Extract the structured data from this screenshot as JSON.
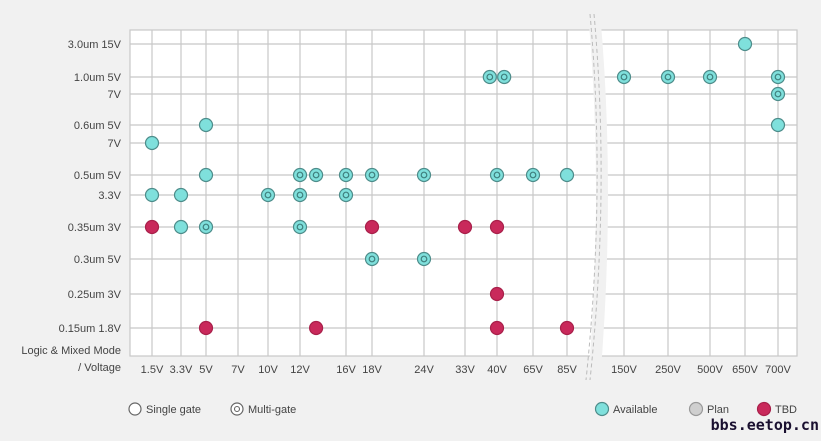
{
  "chart_data": {
    "type": "scatter",
    "title": "",
    "corner_label": [
      "Logic & Mixed Mode",
      "/ Voltage"
    ],
    "x_categories": [
      "1.5V",
      "3.3V",
      "5V",
      "7V",
      "10V",
      "12V",
      "16V",
      "18V",
      "24V",
      "33V",
      "40V",
      "65V",
      "85V",
      "150V",
      "250V",
      "500V",
      "650V",
      "700V"
    ],
    "axis_break_after": "85V",
    "rows": [
      {
        "id": "r30_15",
        "label": "3.0um 15V"
      },
      {
        "id": "r10_5",
        "label": "1.0um  5V"
      },
      {
        "id": "r10_7",
        "label": "7V"
      },
      {
        "id": "r06_5",
        "label": "0.6um  5V"
      },
      {
        "id": "r06_7",
        "label": "7V"
      },
      {
        "id": "r05_5",
        "label": "0.5um  5V"
      },
      {
        "id": "r05_33",
        "label": "3.3V"
      },
      {
        "id": "r035_3",
        "label": "0.35um 3V"
      },
      {
        "id": "r03_5",
        "label": "0.3um 5V"
      },
      {
        "id": "r025_3",
        "label": "0.25um 3V"
      },
      {
        "id": "r015_18",
        "label": "0.15um  1.8V"
      }
    ],
    "points": [
      {
        "row": "r30_15",
        "x": "650V",
        "status": "available",
        "gate": "single"
      },
      {
        "row": "r10_5",
        "x": "40V",
        "shift": -0.2,
        "status": "available",
        "gate": "multi"
      },
      {
        "row": "r10_5",
        "x": "40V",
        "shift": 0.2,
        "status": "available",
        "gate": "multi"
      },
      {
        "row": "r10_5",
        "x": "150V",
        "status": "available",
        "gate": "multi"
      },
      {
        "row": "r10_5",
        "x": "250V",
        "status": "available",
        "gate": "multi"
      },
      {
        "row": "r10_5",
        "x": "500V",
        "status": "available",
        "gate": "multi"
      },
      {
        "row": "r10_5",
        "x": "700V",
        "status": "available",
        "gate": "multi"
      },
      {
        "row": "r10_7",
        "x": "700V",
        "status": "available",
        "gate": "multi"
      },
      {
        "row": "r06_5",
        "x": "5V",
        "status": "available",
        "gate": "single"
      },
      {
        "row": "r06_5",
        "x": "700V",
        "status": "available",
        "gate": "single"
      },
      {
        "row": "r06_7",
        "x": "1.5V",
        "status": "available",
        "gate": "single"
      },
      {
        "row": "r05_5",
        "x": "5V",
        "status": "available",
        "gate": "single"
      },
      {
        "row": "r05_5",
        "x": "12V",
        "status": "available",
        "gate": "multi"
      },
      {
        "row": "r05_5",
        "x": "12V",
        "shift": 0.35,
        "status": "available",
        "gate": "multi"
      },
      {
        "row": "r05_5",
        "x": "16V",
        "status": "available",
        "gate": "multi"
      },
      {
        "row": "r05_5",
        "x": "18V",
        "status": "available",
        "gate": "multi"
      },
      {
        "row": "r05_5",
        "x": "24V",
        "status": "available",
        "gate": "multi"
      },
      {
        "row": "r05_5",
        "x": "40V",
        "status": "available",
        "gate": "multi"
      },
      {
        "row": "r05_5",
        "x": "65V",
        "status": "available",
        "gate": "multi"
      },
      {
        "row": "r05_5",
        "x": "85V",
        "status": "available",
        "gate": "single"
      },
      {
        "row": "r05_33",
        "x": "1.5V",
        "status": "available",
        "gate": "single"
      },
      {
        "row": "r05_33",
        "x": "3.3V",
        "status": "available",
        "gate": "single"
      },
      {
        "row": "r05_33",
        "x": "10V",
        "status": "available",
        "gate": "multi"
      },
      {
        "row": "r05_33",
        "x": "12V",
        "status": "available",
        "gate": "multi"
      },
      {
        "row": "r05_33",
        "x": "16V",
        "status": "available",
        "gate": "multi"
      },
      {
        "row": "r035_3",
        "x": "1.5V",
        "status": "tbd",
        "gate": "single"
      },
      {
        "row": "r035_3",
        "x": "3.3V",
        "status": "available",
        "gate": "single"
      },
      {
        "row": "r035_3",
        "x": "5V",
        "status": "available",
        "gate": "multi"
      },
      {
        "row": "r035_3",
        "x": "12V",
        "status": "available",
        "gate": "multi"
      },
      {
        "row": "r035_3",
        "x": "18V",
        "status": "tbd",
        "gate": "single"
      },
      {
        "row": "r035_3",
        "x": "33V",
        "status": "tbd",
        "gate": "single"
      },
      {
        "row": "r035_3",
        "x": "40V",
        "status": "tbd",
        "gate": "single"
      },
      {
        "row": "r03_5",
        "x": "18V",
        "status": "available",
        "gate": "multi"
      },
      {
        "row": "r03_5",
        "x": "24V",
        "status": "available",
        "gate": "multi"
      },
      {
        "row": "r025_3",
        "x": "40V",
        "status": "tbd",
        "gate": "single"
      },
      {
        "row": "r015_18",
        "x": "5V",
        "status": "tbd",
        "gate": "single"
      },
      {
        "row": "r015_18",
        "x": "12V",
        "shift": 0.35,
        "status": "tbd",
        "gate": "single"
      },
      {
        "row": "r015_18",
        "x": "40V",
        "status": "tbd",
        "gate": "single"
      },
      {
        "row": "r015_18",
        "x": "85V",
        "status": "tbd",
        "gate": "single"
      }
    ],
    "legend": {
      "gate": [
        {
          "key": "single",
          "label": "Single gate"
        },
        {
          "key": "multi",
          "label": "Multi-gate"
        }
      ],
      "status": [
        {
          "key": "available",
          "label": "Available"
        },
        {
          "key": "plan",
          "label": "Plan"
        },
        {
          "key": "tbd",
          "label": "TBD"
        }
      ]
    },
    "colors": {
      "available": "#7fe0dc",
      "plan": "#cfcfcf",
      "tbd": "#c9295b",
      "stroke_available": "#4d8c8a",
      "grid": "#c8c8c8"
    }
  },
  "watermark": "bbs.eetop.cn"
}
